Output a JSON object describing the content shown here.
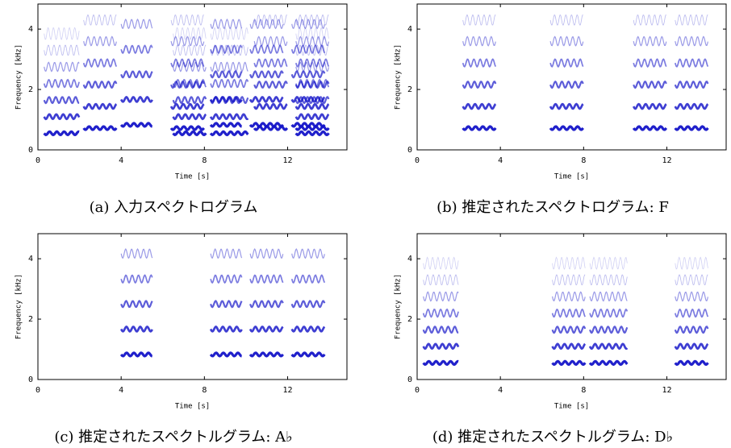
{
  "chart_data": [
    {
      "type": "spectrogram",
      "caption": "(a) 入力スペクトログラム",
      "xlabel": "Time [s]",
      "ylabel": "Frequency [kHz]",
      "xlim": [
        0,
        14.85
      ],
      "ylim": [
        0,
        4.83
      ],
      "xticks": [
        0,
        4,
        8,
        12
      ],
      "yticks": [
        0,
        2,
        4
      ],
      "color": "#1414c8",
      "segments": [
        {
          "start": 0.3,
          "end": 2.0,
          "freqs": [
            0.55,
            1.1,
            1.65,
            2.2,
            2.75,
            3.3,
            3.85
          ]
        },
        {
          "start": 2.2,
          "end": 3.8,
          "freqs": [
            0.72,
            1.44,
            2.16,
            2.88,
            3.6,
            4.3
          ]
        },
        {
          "start": 4.0,
          "end": 5.5,
          "freqs": [
            0.83,
            1.67,
            2.5,
            3.33,
            4.17
          ]
        },
        {
          "start": 6.4,
          "end": 8.0,
          "freqs": [
            0.72,
            1.44,
            2.16,
            2.88,
            3.6,
            4.3
          ]
        },
        {
          "start": 6.5,
          "end": 8.1,
          "freqs": [
            0.55,
            1.1,
            1.65,
            2.2,
            2.75,
            3.3,
            3.85
          ]
        },
        {
          "start": 8.3,
          "end": 10.1,
          "freqs": [
            0.55,
            1.1,
            1.65,
            2.2,
            2.75,
            3.3,
            3.85
          ]
        },
        {
          "start": 8.3,
          "end": 9.8,
          "freqs": [
            0.83,
            1.67,
            2.5,
            3.33,
            4.17
          ]
        },
        {
          "start": 10.2,
          "end": 11.8,
          "freqs": [
            0.83,
            1.67,
            2.5,
            3.33,
            4.17
          ]
        },
        {
          "start": 10.4,
          "end": 12.0,
          "freqs": [
            0.72,
            1.44,
            2.16,
            2.88,
            3.6,
            4.3
          ]
        },
        {
          "start": 12.2,
          "end": 13.8,
          "freqs": [
            0.83,
            1.67,
            2.5,
            3.33,
            4.17
          ]
        },
        {
          "start": 12.4,
          "end": 14.0,
          "freqs": [
            0.72,
            1.44,
            2.16,
            2.88,
            3.6,
            4.3
          ]
        },
        {
          "start": 12.4,
          "end": 14.0,
          "freqs": [
            0.55,
            1.1,
            1.65,
            2.2,
            2.75,
            3.3,
            3.85
          ]
        }
      ]
    },
    {
      "type": "spectrogram",
      "caption": "(b) 推定されたスペクトログラム: F",
      "xlabel": "Time [s]",
      "ylabel": "Frequency [kHz]",
      "xlim": [
        0,
        14.85
      ],
      "ylim": [
        0,
        4.83
      ],
      "xticks": [
        0,
        4,
        8,
        12
      ],
      "yticks": [
        0,
        2,
        4
      ],
      "color": "#1414c8",
      "segments": [
        {
          "start": 2.2,
          "end": 3.8,
          "freqs": [
            0.72,
            1.44,
            2.16,
            2.88,
            3.6,
            4.3
          ]
        },
        {
          "start": 6.4,
          "end": 8.0,
          "freqs": [
            0.72,
            1.44,
            2.16,
            2.88,
            3.6,
            4.3
          ]
        },
        {
          "start": 10.4,
          "end": 12.0,
          "freqs": [
            0.72,
            1.44,
            2.16,
            2.88,
            3.6,
            4.3
          ]
        },
        {
          "start": 12.4,
          "end": 14.0,
          "freqs": [
            0.72,
            1.44,
            2.16,
            2.88,
            3.6,
            4.3
          ]
        }
      ]
    },
    {
      "type": "spectrogram",
      "caption": "(c) 推定されたスペクトルグラム: A♭",
      "xlabel": "Time [s]",
      "ylabel": "Frequency [kHz]",
      "xlim": [
        0,
        14.85
      ],
      "ylim": [
        0,
        4.83
      ],
      "xticks": [
        0,
        4,
        8,
        12
      ],
      "yticks": [
        0,
        2,
        4
      ],
      "color": "#1414c8",
      "segments": [
        {
          "start": 4.0,
          "end": 5.5,
          "freqs": [
            0.83,
            1.67,
            2.5,
            3.33,
            4.17
          ]
        },
        {
          "start": 8.3,
          "end": 9.8,
          "freqs": [
            0.83,
            1.67,
            2.5,
            3.33,
            4.17
          ]
        },
        {
          "start": 10.2,
          "end": 11.8,
          "freqs": [
            0.83,
            1.67,
            2.5,
            3.33,
            4.17
          ]
        },
        {
          "start": 12.2,
          "end": 13.8,
          "freqs": [
            0.83,
            1.67,
            2.5,
            3.33,
            4.17
          ]
        }
      ]
    },
    {
      "type": "spectrogram",
      "caption": "(d) 推定されたスペクトルグラム: D♭",
      "xlabel": "Time [s]",
      "ylabel": "Frequency [kHz]",
      "xlim": [
        0,
        14.85
      ],
      "ylim": [
        0,
        4.83
      ],
      "xticks": [
        0,
        4,
        8,
        12
      ],
      "yticks": [
        0,
        2,
        4
      ],
      "color": "#1414c8",
      "segments": [
        {
          "start": 0.3,
          "end": 2.0,
          "freqs": [
            0.55,
            1.1,
            1.65,
            2.2,
            2.75,
            3.3,
            3.85
          ]
        },
        {
          "start": 6.5,
          "end": 8.1,
          "freqs": [
            0.55,
            1.1,
            1.65,
            2.2,
            2.75,
            3.3,
            3.85
          ]
        },
        {
          "start": 8.3,
          "end": 10.1,
          "freqs": [
            0.55,
            1.1,
            1.65,
            2.2,
            2.75,
            3.3,
            3.85
          ]
        },
        {
          "start": 12.4,
          "end": 14.0,
          "freqs": [
            0.55,
            1.1,
            1.65,
            2.2,
            2.75,
            3.3,
            3.85
          ]
        }
      ]
    }
  ]
}
